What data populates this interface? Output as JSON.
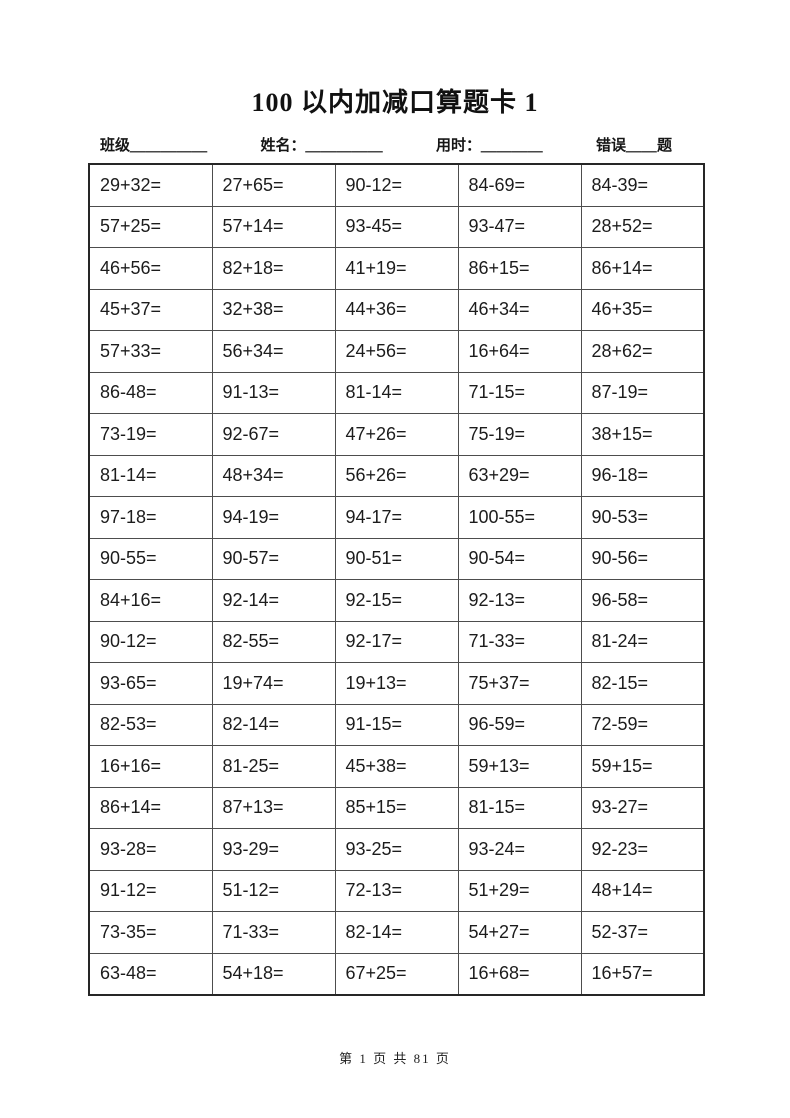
{
  "page": {
    "title": "100 以内加减口算题卡 1",
    "footer": "第 1 页 共 81 页"
  },
  "meta": {
    "class_label": "班级",
    "class_blank": "＿＿＿＿＿",
    "name_label": "姓名：",
    "name_blank": "＿＿＿＿＿",
    "time_label": "用时：",
    "time_blank": "＿＿＿＿",
    "error_label": "错误",
    "error_blank": "＿＿",
    "error_suffix": "题"
  },
  "problems": [
    [
      "29+32=",
      "27+65=",
      "90-12=",
      "84-69=",
      "84-39="
    ],
    [
      "57+25=",
      "57+14=",
      "93-45=",
      "93-47=",
      "28+52="
    ],
    [
      "46+56=",
      "82+18=",
      "41+19=",
      "86+15=",
      "86+14="
    ],
    [
      "45+37=",
      "32+38=",
      "44+36=",
      "46+34=",
      "46+35="
    ],
    [
      "57+33=",
      "56+34=",
      "24+56=",
      "16+64=",
      "28+62="
    ],
    [
      "86-48=",
      "91-13=",
      "81-14=",
      "71-15=",
      "87-19="
    ],
    [
      "73-19=",
      "92-67=",
      "47+26=",
      "75-19=",
      "38+15="
    ],
    [
      "81-14=",
      "48+34=",
      "56+26=",
      "63+29=",
      "96-18="
    ],
    [
      "97-18=",
      "94-19=",
      "94-17=",
      "100-55=",
      "90-53="
    ],
    [
      "90-55=",
      "90-57=",
      "90-51=",
      "90-54=",
      "90-56="
    ],
    [
      "84+16=",
      "92-14=",
      "92-15=",
      "92-13=",
      "96-58="
    ],
    [
      "90-12=",
      "82-55=",
      "92-17=",
      "71-33=",
      "81-24="
    ],
    [
      "93-65=",
      "19+74=",
      "19+13=",
      "75+37=",
      "82-15="
    ],
    [
      "82-53=",
      "82-14=",
      "91-15=",
      "96-59=",
      "72-59="
    ],
    [
      "16+16=",
      "81-25=",
      "45+38=",
      "59+13=",
      "59+15="
    ],
    [
      "86+14=",
      "87+13=",
      "85+15=",
      "81-15=",
      "93-27="
    ],
    [
      "93-28=",
      "93-29=",
      "93-25=",
      "93-24=",
      "92-23="
    ],
    [
      "91-12=",
      "51-12=",
      "72-13=",
      "51+29=",
      "48+14="
    ],
    [
      "73-35=",
      "71-33=",
      "82-14=",
      "54+27=",
      "52-37="
    ],
    [
      "63-48=",
      "54+18=",
      "67+25=",
      "16+68=",
      "16+57="
    ]
  ]
}
